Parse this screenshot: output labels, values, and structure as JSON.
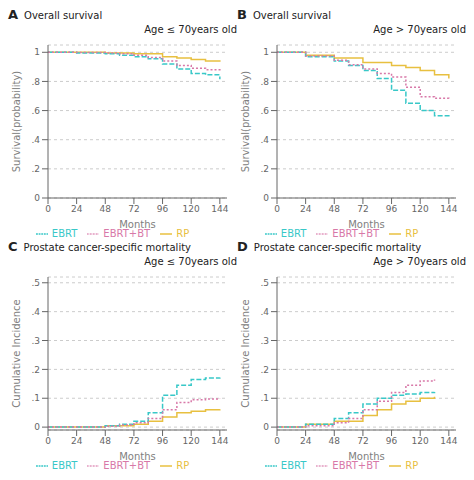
{
  "chart_data": [
    {
      "type": "step",
      "title": "Overall survival",
      "subtitle": "Age ≤ 70years old",
      "annotations": [
        "A"
      ],
      "xlabel": "Months",
      "ylabel": "Survival(probability)",
      "xlim": [
        0,
        150
      ],
      "ylim": [
        0,
        1.05
      ],
      "xticks": [
        0,
        24,
        48,
        72,
        96,
        120,
        144
      ],
      "yticks": [
        0,
        {
          "value": 0.2,
          "label": ".2"
        },
        {
          "value": 0.4,
          "label": ".4"
        },
        {
          "value": 0.6,
          "label": ".6"
        },
        {
          "value": 0.8,
          "label": ".8"
        },
        1
      ],
      "grid": "y",
      "legend": "bottom",
      "series": [
        {
          "name": "RP",
          "color": "#e8c040",
          "line_style": "solid",
          "x": [
            0,
            24,
            48,
            72,
            96,
            108,
            120,
            132,
            144
          ],
          "values": [
            1.0,
            1.0,
            0.995,
            0.99,
            0.97,
            0.96,
            0.95,
            0.94,
            0.935
          ]
        },
        {
          "name": "EBRT",
          "color": "#38c8c8",
          "line_style": "dashed",
          "x": [
            0,
            24,
            48,
            60,
            72,
            84,
            96,
            108,
            120,
            132,
            144
          ],
          "values": [
            1.0,
            0.995,
            0.99,
            0.98,
            0.97,
            0.955,
            0.92,
            0.885,
            0.855,
            0.845,
            0.815
          ]
        },
        {
          "name": "EBRT+BT",
          "color": "#d878a8",
          "line_style": "dotted",
          "x": [
            0,
            24,
            48,
            60,
            72,
            84,
            96,
            108,
            120,
            132,
            144
          ],
          "values": [
            1.0,
            0.998,
            0.995,
            0.99,
            0.98,
            0.965,
            0.94,
            0.91,
            0.89,
            0.88,
            0.875
          ]
        }
      ]
    },
    {
      "type": "step",
      "title": "Overall survival",
      "subtitle": "Age > 70years old",
      "annotations": [
        "B"
      ],
      "xlabel": "Months",
      "ylabel": "Survival(probability)",
      "xlim": [
        0,
        150
      ],
      "ylim": [
        0,
        1.05
      ],
      "xticks": [
        0,
        24,
        48,
        72,
        96,
        120,
        144
      ],
      "yticks": [
        0,
        {
          "value": 0.2,
          "label": ".2"
        },
        {
          "value": 0.4,
          "label": ".4"
        },
        {
          "value": 0.6,
          "label": ".6"
        },
        {
          "value": 0.8,
          "label": ".8"
        },
        1
      ],
      "grid": "y",
      "legend": "bottom",
      "series": [
        {
          "name": "RP",
          "color": "#e8c040",
          "line_style": "solid",
          "x": [
            0,
            24,
            48,
            72,
            96,
            108,
            120,
            132,
            144
          ],
          "values": [
            1.0,
            0.98,
            0.96,
            0.93,
            0.91,
            0.895,
            0.875,
            0.845,
            0.82
          ]
        },
        {
          "name": "EBRT",
          "color": "#38c8c8",
          "line_style": "dashed",
          "x": [
            0,
            24,
            48,
            60,
            72,
            84,
            96,
            108,
            120,
            132,
            144
          ],
          "values": [
            1.0,
            0.97,
            0.94,
            0.91,
            0.875,
            0.82,
            0.74,
            0.65,
            0.6,
            0.565,
            0.545
          ]
        },
        {
          "name": "EBRT+BT",
          "color": "#d878a8",
          "line_style": "dotted",
          "x": [
            0,
            24,
            48,
            60,
            72,
            84,
            96,
            108,
            120,
            132,
            144
          ],
          "values": [
            1.0,
            0.975,
            0.945,
            0.915,
            0.885,
            0.855,
            0.83,
            0.76,
            0.695,
            0.685,
            0.68
          ]
        }
      ]
    },
    {
      "type": "step",
      "title": "Prostate cancer-specific mortality",
      "subtitle": "Age ≤ 70years old",
      "annotations": [
        "C"
      ],
      "xlabel": "Months",
      "ylabel": "Cumulative Incidence",
      "xlim": [
        0,
        150
      ],
      "ylim": [
        -0.01,
        0.52
      ],
      "xticks": [
        0,
        24,
        48,
        72,
        96,
        120,
        144
      ],
      "yticks": [
        0,
        {
          "value": 0.1,
          "label": ".1"
        },
        {
          "value": 0.2,
          "label": ".2"
        },
        {
          "value": 0.3,
          "label": ".3"
        },
        {
          "value": 0.4,
          "label": ".4"
        },
        {
          "value": 0.5,
          "label": ".5"
        }
      ],
      "grid": "y",
      "legend": "bottom",
      "series": [
        {
          "name": "RP",
          "color": "#e8c040",
          "line_style": "solid",
          "x": [
            0,
            48,
            72,
            84,
            96,
            108,
            120,
            132,
            144
          ],
          "values": [
            0.0,
            0.005,
            0.01,
            0.02,
            0.035,
            0.05,
            0.055,
            0.06,
            0.062
          ]
        },
        {
          "name": "EBRT",
          "color": "#38c8c8",
          "line_style": "dashed",
          "x": [
            0,
            48,
            60,
            72,
            84,
            96,
            108,
            120,
            132,
            144
          ],
          "values": [
            0.0,
            0.005,
            0.01,
            0.02,
            0.05,
            0.11,
            0.145,
            0.165,
            0.17,
            0.172
          ]
        },
        {
          "name": "EBRT+BT",
          "color": "#d878a8",
          "line_style": "dotted",
          "x": [
            0,
            48,
            60,
            72,
            84,
            96,
            108,
            120,
            132,
            144
          ],
          "values": [
            0.0,
            0.003,
            0.007,
            0.015,
            0.03,
            0.06,
            0.085,
            0.095,
            0.097,
            0.098
          ]
        }
      ]
    },
    {
      "type": "step",
      "title": "Prostate cancer-specific mortality",
      "subtitle": "Age > 70years old",
      "annotations": [
        "D"
      ],
      "xlabel": "Months",
      "ylabel": "Cumulative Incidence",
      "xlim": [
        0,
        150
      ],
      "ylim": [
        -0.01,
        0.52
      ],
      "xticks": [
        0,
        24,
        48,
        72,
        96,
        120,
        144
      ],
      "yticks": [
        0,
        {
          "value": 0.1,
          "label": ".1"
        },
        {
          "value": 0.2,
          "label": ".2"
        },
        {
          "value": 0.3,
          "label": ".3"
        },
        {
          "value": 0.4,
          "label": ".4"
        },
        {
          "value": 0.5,
          "label": ".5"
        }
      ],
      "grid": "y",
      "legend": "bottom",
      "series": [
        {
          "name": "RP",
          "color": "#e8c040",
          "line_style": "solid",
          "x": [
            0,
            24,
            48,
            72,
            84,
            96,
            108,
            120,
            132
          ],
          "values": [
            0.0,
            0.01,
            0.02,
            0.04,
            0.06,
            0.08,
            0.09,
            0.1,
            0.105
          ]
        },
        {
          "name": "EBRT",
          "color": "#38c8c8",
          "line_style": "dashed",
          "x": [
            0,
            24,
            48,
            60,
            72,
            84,
            96,
            108,
            120,
            132
          ],
          "values": [
            0.0,
            0.01,
            0.03,
            0.05,
            0.08,
            0.1,
            0.11,
            0.115,
            0.12,
            0.122
          ]
        },
        {
          "name": "EBRT+BT",
          "color": "#d878a8",
          "line_style": "dotted",
          "x": [
            0,
            24,
            48,
            60,
            72,
            84,
            96,
            108,
            120,
            132
          ],
          "values": [
            0.0,
            0.005,
            0.015,
            0.03,
            0.06,
            0.09,
            0.12,
            0.145,
            0.16,
            0.165
          ]
        }
      ]
    }
  ]
}
